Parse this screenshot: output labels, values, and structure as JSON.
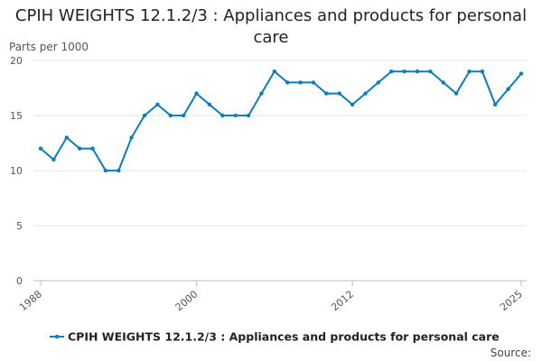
{
  "title": "CPIH WEIGHTS 12.1.2/3 : Appliances and products for personal care",
  "source_label": "Source:",
  "chart_data": {
    "type": "line",
    "title": "CPIH WEIGHTS 12.1.2/3 : Appliances and products for personal care",
    "ylabel": "Parts per 1000",
    "xlabel": "",
    "ylim": [
      0,
      20
    ],
    "yticks": [
      0,
      5,
      10,
      15,
      20
    ],
    "xlim": [
      1988,
      2025
    ],
    "xticks": [
      1988,
      2000,
      2012,
      2025
    ],
    "grid": true,
    "legend_position": "bottom",
    "color": "#0b7dba",
    "series": [
      {
        "name": "CPIH WEIGHTS 12.1.2/3 : Appliances and products for personal care",
        "x": [
          1988,
          1989,
          1990,
          1991,
          1992,
          1993,
          1994,
          1995,
          1996,
          1997,
          1998,
          1999,
          2000,
          2001,
          2002,
          2003,
          2004,
          2005,
          2006,
          2007,
          2008,
          2009,
          2010,
          2011,
          2012,
          2013,
          2014,
          2015,
          2016,
          2017,
          2018,
          2019,
          2020,
          2021,
          2022,
          2023,
          2024,
          2025
        ],
        "values": [
          12,
          11,
          13,
          12,
          12,
          10,
          10,
          13,
          15,
          16,
          15,
          15,
          17,
          16,
          15,
          15,
          15,
          17,
          19,
          18,
          18,
          18,
          17,
          17,
          16,
          17,
          18,
          19,
          19,
          19,
          19,
          18,
          17,
          19,
          19,
          16,
          17.4,
          18.8
        ]
      }
    ]
  }
}
